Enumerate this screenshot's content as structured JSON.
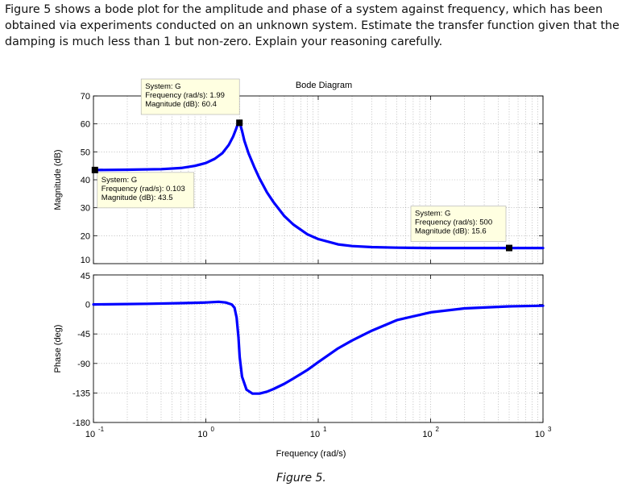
{
  "question": "Figure 5 shows a bode plot for the amplitude and phase of a system against frequency, which has been obtained via experiments conducted on an unknown system. Estimate the transfer function given that the damping is much less than 1 but non-zero. Explain your reasoning carefully.",
  "caption": "Figure 5.",
  "chart_data": {
    "type": "line",
    "title": "Bode Diagram",
    "xlabel": "Frequency (rad/s)",
    "xscale": "log",
    "xlim": [
      0.1,
      1000
    ],
    "x_ticks": [
      {
        "base": "10",
        "exp": "-1"
      },
      {
        "base": "10",
        "exp": "0"
      },
      {
        "base": "10",
        "exp": "1"
      },
      {
        "base": "10",
        "exp": "2"
      },
      {
        "base": "10",
        "exp": "3"
      }
    ],
    "grid": true,
    "line_color": "#0000ff",
    "panels": [
      {
        "name": "magnitude",
        "ylabel": "Magnitude (dB)",
        "ylim": [
          10,
          70
        ],
        "yticks": [
          10,
          20,
          30,
          40,
          50,
          60,
          70
        ],
        "series": [
          {
            "x": [
              0.1,
              0.2,
              0.4,
              0.6,
              0.8,
              1.0,
              1.2,
              1.4,
              1.6,
              1.75,
              1.85,
              1.92,
              1.96,
              1.99,
              2.03,
              2.1,
              2.2,
              2.4,
              2.7,
              3.0,
              3.5,
              4.0,
              5.0,
              6.0,
              8.0,
              10,
              15,
              20,
              30,
              50,
              100,
              200,
              500,
              1000
            ],
            "y": [
              43.5,
              43.6,
              43.8,
              44.2,
              45.0,
              46.0,
              47.5,
              49.5,
              52.5,
              55.5,
              58.0,
              59.8,
              60.3,
              60.4,
              59.6,
              57.5,
              54.0,
              49.5,
              44.5,
              40.5,
              35.5,
              32.0,
              27.0,
              24.0,
              20.5,
              18.8,
              16.9,
              16.3,
              15.9,
              15.7,
              15.6,
              15.6,
              15.6,
              15.6
            ]
          }
        ],
        "datatips": [
          {
            "label": "System: G",
            "freq": "Frequency (rad/s): 1.99",
            "mag": "Magnitude (dB): 60.4",
            "x": 1.99,
            "y": 60.4
          },
          {
            "label": "System: G",
            "freq": "Frequency (rad/s): 0.103",
            "mag": "Magnitude (dB): 43.5",
            "x": 0.103,
            "y": 43.5
          },
          {
            "label": "System: G",
            "freq": "Frequency (rad/s): 500",
            "mag": "Magnitude (dB): 15.6",
            "x": 500,
            "y": 15.6
          }
        ]
      },
      {
        "name": "phase",
        "ylabel": "Phase (deg)",
        "ylim": [
          -180,
          45
        ],
        "yticks": [
          45,
          0,
          -45,
          -90,
          -135,
          -180
        ],
        "series": [
          {
            "x": [
              0.1,
              0.3,
              0.6,
              1.0,
              1.3,
              1.5,
              1.7,
              1.8,
              1.88,
              1.95,
              2.0,
              2.1,
              2.3,
              2.6,
              3.0,
              3.5,
              4.0,
              5.0,
              6.0,
              8.0,
              10,
              15,
              20,
              30,
              50,
              100,
              200,
              500,
              1000
            ],
            "y": [
              0,
              1,
              2,
              3,
              4,
              3,
              0,
              -5,
              -20,
              -50,
              -80,
              -110,
              -130,
              -136,
              -136,
              -133,
              -129,
              -121,
              -113,
              -100,
              -88,
              -67,
              -55,
              -40,
              -24,
              -12,
              -6,
              -3,
              -2
            ]
          }
        ]
      }
    ]
  }
}
